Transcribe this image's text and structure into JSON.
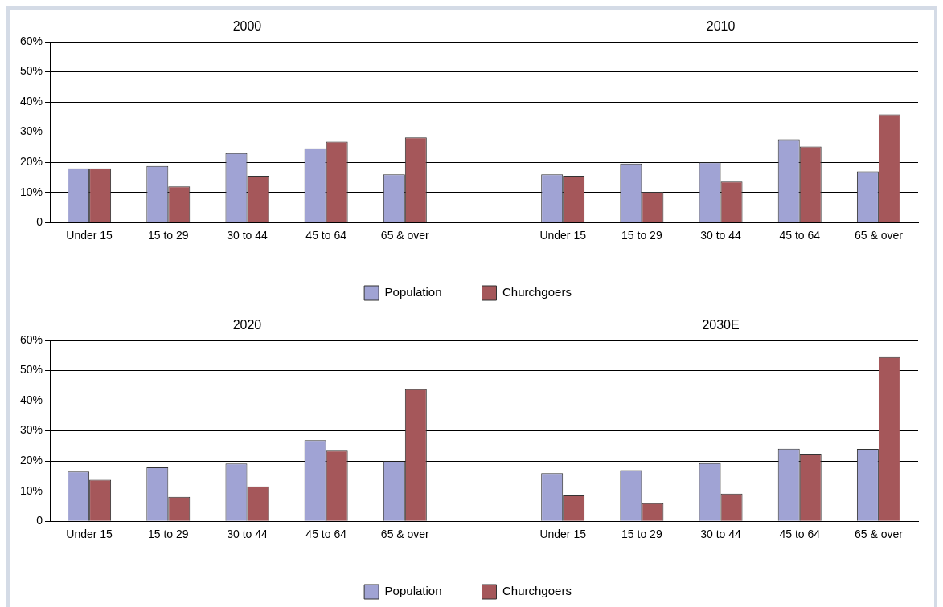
{
  "chart_data": [
    {
      "type": "bar",
      "annotations": [
        "2000",
        "2010"
      ],
      "categories": [
        "Under 15",
        "15 to 29",
        "30 to 44",
        "45 to 64",
        "65 & over",
        null,
        "Under 15",
        "15 to 29",
        "30 to 44",
        "45 to 64",
        "65 & over"
      ],
      "series": [
        {
          "name": "Population",
          "color": "#a0a3d4",
          "values": [
            18,
            18.8,
            23,
            24.6,
            16,
            null,
            16,
            19.6,
            20,
            27.6,
            17
          ]
        },
        {
          "name": "Churchgoers",
          "color": "#a5575a",
          "values": [
            18,
            12,
            15.5,
            26.8,
            28.2,
            null,
            15.5,
            10.2,
            13.6,
            25.2,
            35.9
          ]
        }
      ],
      "ylim": [
        0,
        60
      ],
      "yticks": [
        0,
        {
          "value": 10,
          "label": "10%"
        },
        {
          "value": 20,
          "label": "20%"
        },
        {
          "value": 30,
          "label": "30%"
        },
        {
          "value": 40,
          "label": "40%"
        },
        {
          "value": 50,
          "label": "50%"
        },
        {
          "value": 60,
          "label": "60%"
        }
      ],
      "grid": "y",
      "legend": "bottom"
    },
    {
      "type": "bar",
      "annotations": [
        "2020",
        "2030E"
      ],
      "categories": [
        "Under 15",
        "15 to 29",
        "30 to 44",
        "45 to 64",
        "65 & over",
        null,
        "Under 15",
        "15 to 29",
        "30 to 44",
        "45 to 64",
        "65 & over"
      ],
      "series": [
        {
          "name": "Population",
          "color": "#a0a3d4",
          "values": [
            16.5,
            17.9,
            19.2,
            26.9,
            20,
            null,
            16,
            17,
            19.3,
            24.1,
            24
          ]
        },
        {
          "name": "Churchgoers",
          "color": "#a5575a",
          "values": [
            13.8,
            8.1,
            11.6,
            23.4,
            43.8,
            null,
            8.6,
            6,
            9.2,
            22.2,
            54.5
          ]
        }
      ],
      "ylim": [
        0,
        60
      ],
      "yticks": [
        0,
        {
          "value": 10,
          "label": "10%"
        },
        {
          "value": 20,
          "label": "20%"
        },
        {
          "value": 30,
          "label": "30%"
        },
        {
          "value": 40,
          "label": "40%"
        },
        {
          "value": 50,
          "label": "50%"
        },
        {
          "value": 60,
          "label": "60%"
        }
      ],
      "grid": "y",
      "legend": "bottom"
    }
  ]
}
